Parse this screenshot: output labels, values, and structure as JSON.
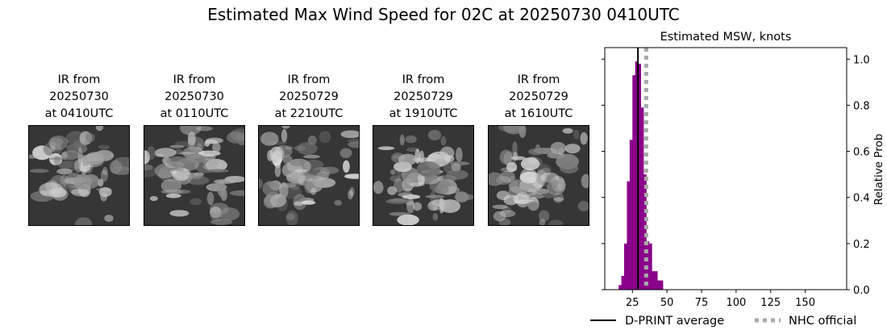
{
  "figure": {
    "title": "Estimated Max Wind Speed for 02C at 20250730 0410UTC"
  },
  "ir_panels": [
    {
      "line1": "IR from",
      "line2": "20250730",
      "line3": "at 0410UTC"
    },
    {
      "line1": "IR from",
      "line2": "20250730",
      "line3": "at 0110UTC"
    },
    {
      "line1": "IR from",
      "line2": "20250729",
      "line3": "at 2210UTC"
    },
    {
      "line1": "IR from",
      "line2": "20250729",
      "line3": "at 1910UTC"
    },
    {
      "line1": "IR from",
      "line2": "20250729",
      "line3": "at 1610UTC"
    }
  ],
  "chart_data": {
    "type": "bar",
    "title": "Estimated MSW, knots",
    "xlabel": "",
    "ylabel": "Relative Prob",
    "xlim": [
      5,
      180
    ],
    "ylim": [
      0,
      1.05
    ],
    "x_ticks": [
      25,
      50,
      75,
      100,
      125,
      150
    ],
    "y_ticks": [
      0.0,
      0.2,
      0.4,
      0.6,
      0.8,
      1.0
    ],
    "y_tick_labels": [
      "0.0",
      "0.2",
      "0.4",
      "0.6",
      "0.8",
      "1.0"
    ],
    "y_axis_side": "right",
    "bar_color": "#8b008b",
    "bin_width": 2,
    "bins": [
      {
        "x": 16,
        "y": 0.02
      },
      {
        "x": 18,
        "y": 0.06
      },
      {
        "x": 20,
        "y": 0.2
      },
      {
        "x": 22,
        "y": 0.47
      },
      {
        "x": 24,
        "y": 0.65
      },
      {
        "x": 26,
        "y": 0.93
      },
      {
        "x": 28,
        "y": 0.99
      },
      {
        "x": 30,
        "y": 0.98
      },
      {
        "x": 32,
        "y": 0.79
      },
      {
        "x": 34,
        "y": 0.5
      },
      {
        "x": 36,
        "y": 0.21
      },
      {
        "x": 38,
        "y": 0.2
      },
      {
        "x": 40,
        "y": 0.08
      },
      {
        "x": 42,
        "y": 0.08
      },
      {
        "x": 44,
        "y": 0.04
      },
      {
        "x": 46,
        "y": 0.04
      }
    ],
    "vertical_lines": [
      {
        "name": "D-PRINT average",
        "x": 29,
        "color": "#000000",
        "style": "solid"
      },
      {
        "name": "NHC official",
        "x": 35,
        "color": "#a9a9a9",
        "style": "dotted"
      }
    ],
    "legend": {
      "placement": "bottom",
      "entries": [
        "D-PRINT average",
        "NHC official"
      ]
    }
  }
}
